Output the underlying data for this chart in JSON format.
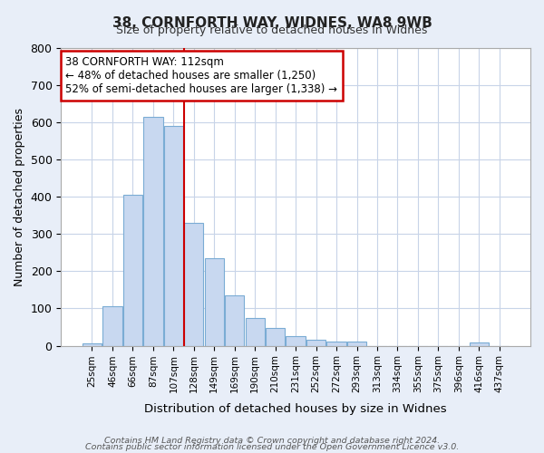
{
  "title": "38, CORNFORTH WAY, WIDNES, WA8 9WB",
  "subtitle": "Size of property relative to detached houses in Widnes",
  "xlabel": "Distribution of detached houses by size in Widnes",
  "ylabel": "Number of detached properties",
  "bar_labels": [
    "25sqm",
    "46sqm",
    "66sqm",
    "87sqm",
    "107sqm",
    "128sqm",
    "149sqm",
    "169sqm",
    "190sqm",
    "210sqm",
    "231sqm",
    "252sqm",
    "272sqm",
    "293sqm",
    "313sqm",
    "334sqm",
    "355sqm",
    "375sqm",
    "396sqm",
    "416sqm",
    "437sqm"
  ],
  "bar_values": [
    5,
    105,
    405,
    615,
    590,
    330,
    235,
    135,
    75,
    48,
    25,
    15,
    12,
    10,
    0,
    0,
    0,
    0,
    0,
    8,
    0
  ],
  "bar_color": "#c8d8f0",
  "bar_edge_color": "#7aacd4",
  "vline_x": 4.5,
  "vline_color": "#cc0000",
  "annotation_title": "38 CORNFORTH WAY: 112sqm",
  "annotation_line1": "← 48% of detached houses are smaller (1,250)",
  "annotation_line2": "52% of semi-detached houses are larger (1,338) →",
  "annotation_box_color": "#ffffff",
  "annotation_box_edge": "#cc0000",
  "ylim": [
    0,
    800
  ],
  "yticks": [
    0,
    100,
    200,
    300,
    400,
    500,
    600,
    700,
    800
  ],
  "footer_line1": "Contains HM Land Registry data © Crown copyright and database right 2024.",
  "footer_line2": "Contains public sector information licensed under the Open Government Licence v3.0.",
  "bg_color": "#e8eef8",
  "plot_bg_color": "#ffffff",
  "grid_color": "#c8d4e8"
}
